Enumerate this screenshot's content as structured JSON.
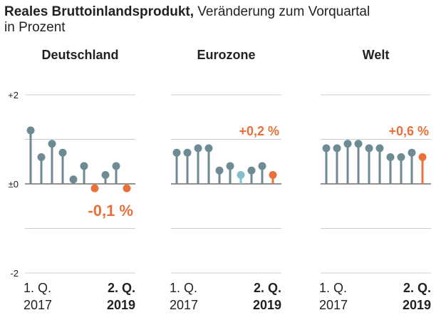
{
  "title_bold": "Reales Bruttoinlandsprodukt,",
  "title_rest": " Veränderung zum Vorquartal",
  "subtitle": "in Prozent",
  "chart_data": [
    {
      "type": "lollipop",
      "title": "Deutschland",
      "categories": [
        [
          "1. Q.",
          "2017"
        ],
        null,
        null,
        null,
        null,
        null,
        null,
        null,
        null,
        [
          "2. Q.",
          "2019"
        ]
      ],
      "values": [
        1.2,
        0.6,
        0.9,
        0.7,
        0.1,
        0.4,
        -0.1,
        0.2,
        0.4,
        -0.1
      ],
      "colors": [
        "#6e8a93",
        "#6e8a93",
        "#6e8a93",
        "#6e8a93",
        "#6e8a93",
        "#6e8a93",
        "#e8703a",
        "#6e8a93",
        "#6e8a93",
        "#e8703a"
      ],
      "value_labels": [
        null,
        null,
        null,
        null,
        null,
        null,
        null,
        null,
        null,
        "-0,1 %"
      ],
      "ylim": [
        -2,
        2
      ],
      "yticks": [
        {
          "value": 2,
          "label": "+2"
        },
        {
          "value": 0,
          "label": "±0"
        },
        -2
      ],
      "ygrid": [
        2,
        1,
        0,
        -1,
        -2
      ]
    },
    {
      "type": "lollipop",
      "title": "Eurozone",
      "categories": [
        [
          "1. Q.",
          "2017"
        ],
        null,
        null,
        null,
        null,
        null,
        null,
        null,
        null,
        [
          "2. Q.",
          "2019"
        ]
      ],
      "values": [
        0.7,
        0.7,
        0.8,
        0.8,
        0.3,
        0.4,
        0.2,
        0.3,
        0.4,
        0.2
      ],
      "colors": [
        "#6e8a93",
        "#6e8a93",
        "#6e8a93",
        "#6e8a93",
        "#6e8a93",
        "#6e8a93",
        "#86bcd0",
        "#6e8a93",
        "#6e8a93",
        "#e8703a"
      ],
      "value_labels": [
        null,
        null,
        null,
        null,
        null,
        null,
        null,
        null,
        null,
        "+0,2 %"
      ],
      "ylim": [
        -2,
        2
      ],
      "ygrid": [
        2,
        1,
        0,
        -1,
        -2
      ]
    },
    {
      "type": "lollipop",
      "title": "Welt",
      "categories": [
        [
          "1. Q.",
          "2017"
        ],
        null,
        null,
        null,
        null,
        null,
        null,
        null,
        null,
        [
          "2. Q.",
          "2019"
        ]
      ],
      "values": [
        0.8,
        0.8,
        0.9,
        0.9,
        0.8,
        0.8,
        0.6,
        0.6,
        0.7,
        0.6
      ],
      "colors": [
        "#6e8a93",
        "#6e8a93",
        "#6e8a93",
        "#6e8a93",
        "#6e8a93",
        "#6e8a93",
        "#6e8a93",
        "#6e8a93",
        "#6e8a93",
        "#e8703a"
      ],
      "value_labels": [
        null,
        null,
        null,
        null,
        null,
        null,
        null,
        null,
        null,
        "+0,6 %"
      ],
      "ylim": [
        -2,
        2
      ],
      "ygrid": [
        2,
        1,
        0,
        -1,
        -2
      ]
    }
  ]
}
